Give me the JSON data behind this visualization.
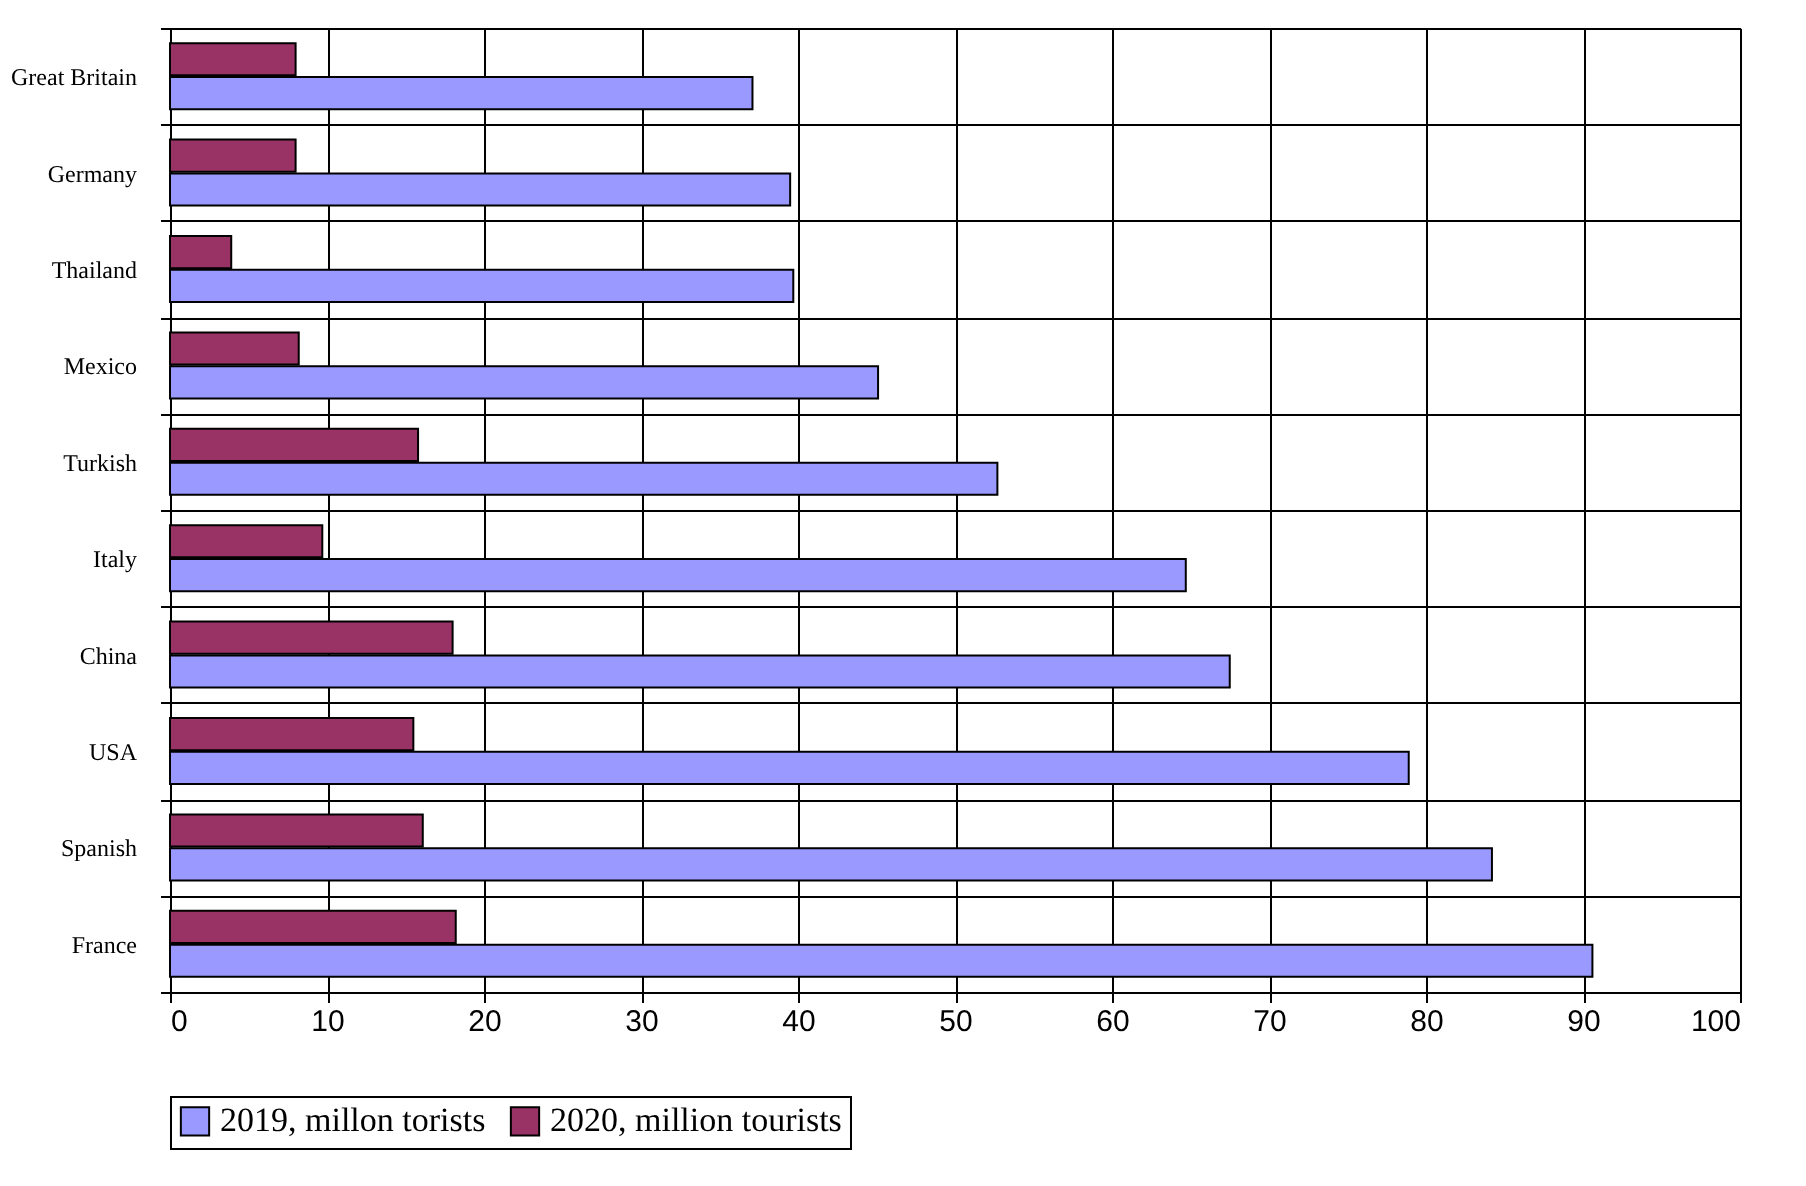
{
  "chart_data": {
    "type": "bar",
    "orientation": "horizontal",
    "categories": [
      "Great Britain",
      "Germany",
      "Thailand",
      "Mexico",
      "Turkish",
      "Italy",
      "China",
      "USA",
      "Spanish",
      "France"
    ],
    "series": [
      {
        "name": "2019, millon torists",
        "color": "#9999ff",
        "values": [
          37.1,
          39.5,
          39.7,
          45.1,
          52.7,
          64.7,
          67.5,
          78.9,
          84.2,
          90.6
        ]
      },
      {
        "name": "2020, million tourists",
        "color": "#993366",
        "values": [
          8.0,
          8.0,
          3.9,
          8.2,
          15.8,
          9.7,
          18.0,
          15.5,
          16.1,
          18.2
        ]
      }
    ],
    "xlim": [
      0,
      100
    ],
    "xticks": [
      0,
      10,
      20,
      30,
      40,
      50,
      60,
      70,
      80,
      90,
      100
    ],
    "grid": true,
    "legend": "bottom"
  }
}
